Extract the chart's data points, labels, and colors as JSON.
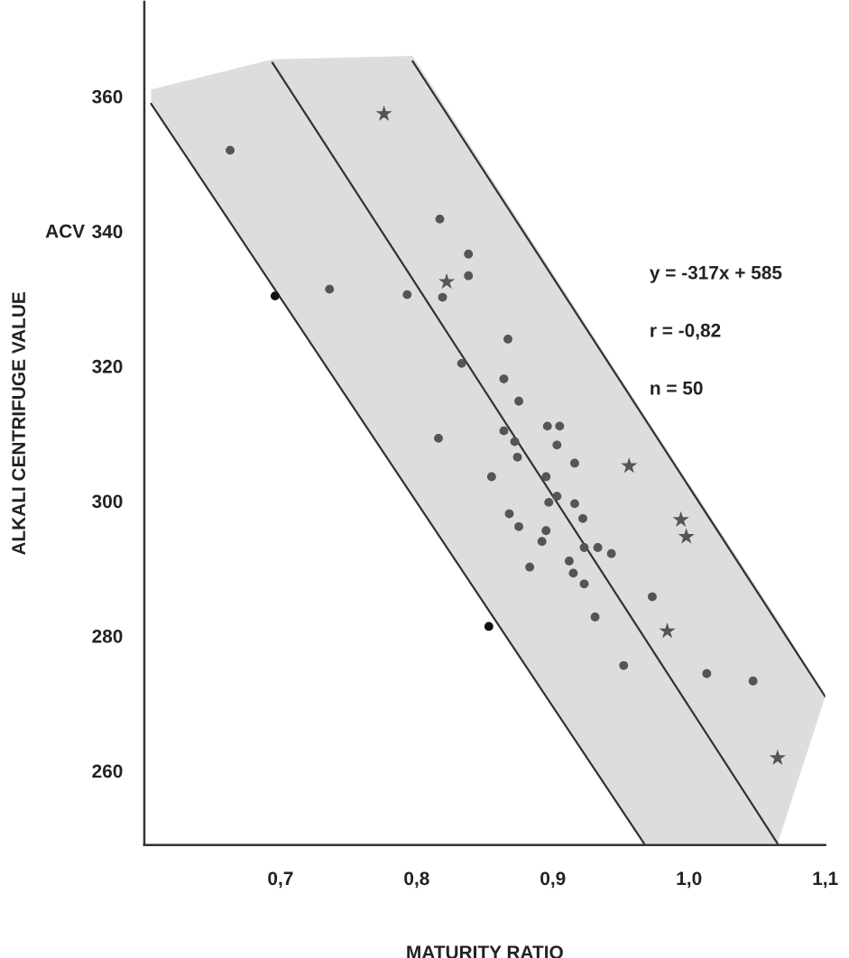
{
  "chart_data": {
    "type": "scatter",
    "xlabel": "MATURITY RATIO",
    "ylabel": "ALKALI CENTRIFUGE VALUE",
    "annotations": [
      "ACV",
      "y = -317x + 585",
      "r = -0,82",
      "n = 50"
    ],
    "xlim": [
      0.6,
      1.1
    ],
    "ylim": [
      249,
      374
    ],
    "xticks": [
      {
        "value": 0.7,
        "label": "0,7"
      },
      {
        "value": 0.8,
        "label": "0,8"
      },
      {
        "value": 0.9,
        "label": "0,9"
      },
      {
        "value": 1.0,
        "label": "1,0"
      },
      {
        "value": 1.1,
        "label": "1,1"
      }
    ],
    "yticks": [
      260,
      280,
      300,
      320,
      340,
      360
    ],
    "grid": false,
    "series": [
      {
        "type": "line",
        "color": "#333333",
        "line_style": "solid",
        "x": [
          0.605,
          0.967
        ],
        "values": [
          358.9,
          249.2
        ]
      },
      {
        "type": "line",
        "color": "#333333",
        "line_style": "solid",
        "x": [
          0.605,
          0.694,
          0.797,
          0.967,
          1.065,
          1.1
        ],
        "values": [
          null,
          365,
          332.9,
          279.8,
          249.2,
          null
        ],
        "upper": [
          361,
          365.5,
          366,
          312.8,
          282.5,
          271
        ],
        "lower": [
          358.9,
          331.9,
          300.7,
          249.2,
          249.2,
          271
        ]
      },
      {
        "type": "line",
        "color": "#333333",
        "line_style": "solid",
        "x": [
          0.797,
          1.1
        ],
        "values": [
          365.2,
          271
        ]
      },
      {
        "color": "#555555",
        "marker": "circle",
        "x": [
          0.663,
          0.817,
          0.838,
          0.838,
          0.819,
          0.793,
          0.736,
          0.833,
          0.816,
          0.867,
          0.864,
          0.875,
          0.896,
          0.905,
          0.864,
          0.872,
          0.903,
          0.916,
          0.874,
          0.855,
          0.895,
          0.903,
          0.897,
          0.916,
          0.868,
          0.922,
          0.875,
          0.895,
          0.892,
          0.923,
          0.933,
          0.943,
          0.912,
          0.883,
          0.915,
          0.923,
          0.973,
          0.931,
          0.952,
          1.013,
          1.047
        ],
        "values": [
          352.0,
          341.8,
          336.6,
          333.4,
          330.2,
          330.6,
          331.4,
          320.4,
          309.3,
          324.0,
          318.1,
          314.8,
          311.1,
          311.1,
          310.4,
          308.8,
          308.3,
          305.6,
          306.5,
          303.6,
          303.6,
          300.7,
          299.8,
          299.6,
          298.1,
          297.4,
          296.2,
          295.6,
          294.0,
          293.1,
          293.1,
          292.2,
          291.1,
          290.2,
          289.3,
          287.7,
          285.8,
          282.8,
          275.6,
          274.4,
          273.3
        ]
      },
      {
        "color": "#555555",
        "marker": "star",
        "x": [
          0.776,
          0.822,
          0.956,
          0.994,
          0.998,
          0.984,
          1.065
        ],
        "values": [
          357.4,
          332.5,
          305.2,
          297.2,
          294.7,
          280.7,
          261.9
        ]
      },
      {
        "color": "#111111",
        "marker": "circle",
        "x": [
          0.696,
          0.853
        ],
        "values": [
          330.4,
          281.4
        ]
      }
    ]
  }
}
